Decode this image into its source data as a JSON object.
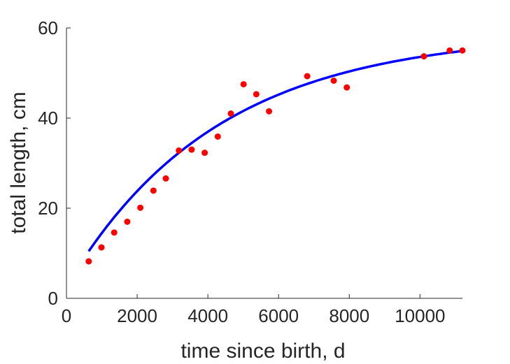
{
  "chart_data": {
    "type": "scatter",
    "title": "",
    "xlabel": "time since birth, d",
    "ylabel": "total length, cm",
    "xlim": [
      0,
      11200
    ],
    "ylim": [
      0,
      60
    ],
    "xticks": [
      0,
      2000,
      4000,
      6000,
      8000,
      10000
    ],
    "yticks": [
      0,
      20,
      40,
      60
    ],
    "grid": false,
    "legend": "none",
    "series": [
      {
        "kind": "points",
        "color": "#ff0000",
        "points": [
          [
            630,
            8.2
          ],
          [
            990,
            11.3
          ],
          [
            1350,
            14.6
          ],
          [
            1720,
            17.0
          ],
          [
            2090,
            20.1
          ],
          [
            2460,
            23.9
          ],
          [
            2810,
            26.6
          ],
          [
            3180,
            32.8
          ],
          [
            3540,
            33.0
          ],
          [
            3910,
            32.3
          ],
          [
            4280,
            35.9
          ],
          [
            4650,
            41.0
          ],
          [
            5010,
            47.5
          ],
          [
            5370,
            45.3
          ],
          [
            5730,
            41.5
          ],
          [
            6810,
            49.3
          ],
          [
            7560,
            48.3
          ],
          [
            7930,
            46.8
          ],
          [
            10110,
            53.7
          ],
          [
            10840,
            55.0
          ],
          [
            11200,
            55.0
          ]
        ]
      },
      {
        "kind": "fitted-curve",
        "color": "#0000ff",
        "model": "von Bertalanffy",
        "Linf": 58.93,
        "k": 0.000235,
        "t0": -200,
        "x_start": 630,
        "x_end": 11200
      }
    ]
  }
}
